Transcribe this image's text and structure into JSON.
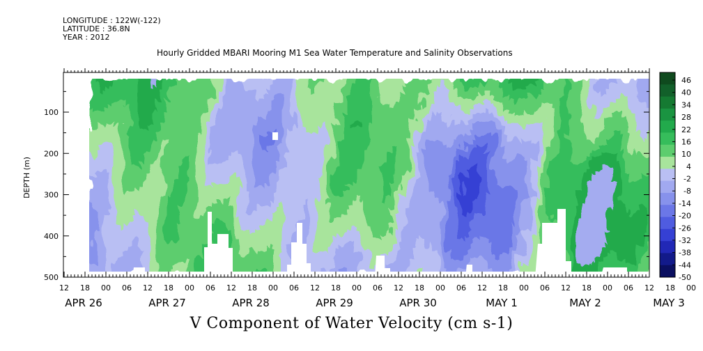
{
  "header": {
    "longitude": "LONGITUDE : 122W(-122)",
    "latitude": "LATITUDE : 36.8N",
    "year": "YEAR : 2012"
  },
  "chart_data": {
    "type": "heatmap",
    "title": "Hourly Gridded MBARI Mooring M1 Sea Water Temperature and Salinity Observations",
    "bottom_title": "V Component of Water Velocity (cm s-1)",
    "ylabel": "DEPTH (m)",
    "ylim": [
      500,
      0
    ],
    "yticks": [
      100,
      200,
      300,
      400,
      500
    ],
    "x_hour_labels": [
      "12",
      "18",
      "00",
      "06",
      "12",
      "18",
      "00",
      "06",
      "12",
      "18",
      "00",
      "06",
      "12",
      "18",
      "00",
      "06",
      "12",
      "18",
      "00",
      "06",
      "12",
      "18",
      "00",
      "06",
      "12",
      "18",
      "00",
      "06",
      "12",
      "18",
      "00",
      "06",
      "12",
      "18",
      "00",
      "06",
      "12"
    ],
    "x_day_labels": [
      "APR 26",
      "APR 27",
      "APR 28",
      "APR 29",
      "APR 30",
      "MAY  1",
      "MAY  2",
      "MAY  3"
    ],
    "colorbar": {
      "labels": [
        "46",
        "40",
        "34",
        "28",
        "22",
        "16",
        "10",
        "4",
        "-2",
        "-8",
        "-14",
        "-20",
        "-26",
        "-32",
        "-38",
        "-44",
        "-50"
      ],
      "colors": [
        "#0f4a1e",
        "#12602a",
        "#157a32",
        "#1a9441",
        "#22aa4c",
        "#36bd5b",
        "#5dcd6e",
        "#a8e49c",
        "#b9bff3",
        "#a1a9f0",
        "#8792ec",
        "#6b77e7",
        "#4f5ce0",
        "#3540d4",
        "#2128b6",
        "#121a8a",
        "#0a0f60"
      ]
    }
  }
}
